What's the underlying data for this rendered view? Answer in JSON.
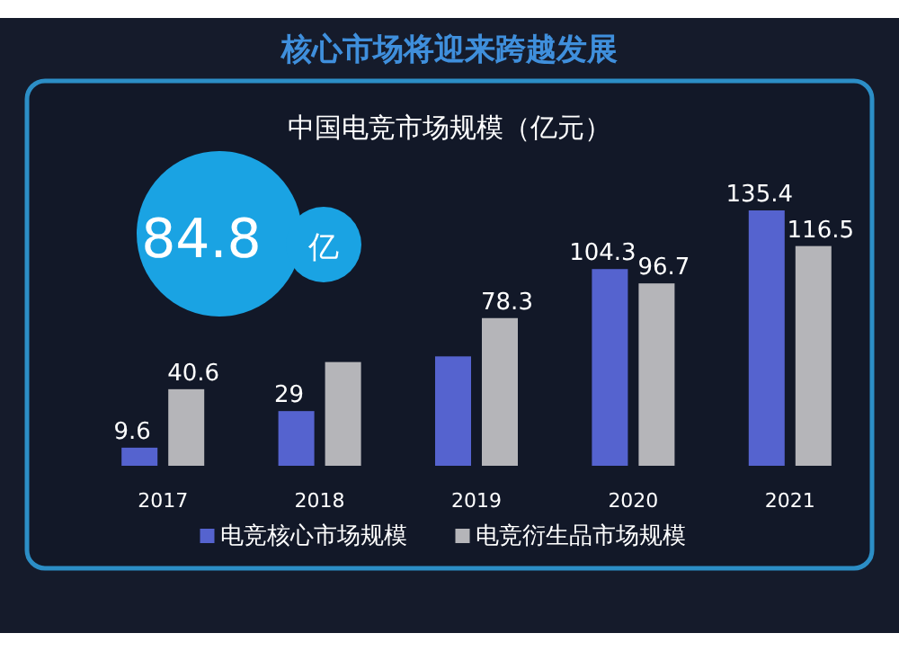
{
  "chart_data": {
    "type": "bar",
    "title": "核心市场将迎来跨越发展",
    "subtitle": "中国电竞市场规模（亿元）",
    "categories": [
      "2017",
      "2018",
      "2019",
      "2020",
      "2021"
    ],
    "series": [
      {
        "name": "电竞核心市场规模",
        "color": "#5563cf",
        "values": [
          9.6,
          29,
          58,
          104.3,
          135.4
        ],
        "value_labels": [
          "9.6",
          "29",
          null,
          "104.3",
          "135.4"
        ]
      },
      {
        "name": "电竞衍生品市场规模",
        "color": "#b5b5b9",
        "values": [
          40.6,
          55,
          78.3,
          96.7,
          116.5
        ],
        "value_labels": [
          "40.6",
          null,
          "78.3",
          "96.7",
          "116.5"
        ]
      }
    ],
    "annotations": [
      "84.8",
      "亿"
    ],
    "legend": "bottom"
  }
}
